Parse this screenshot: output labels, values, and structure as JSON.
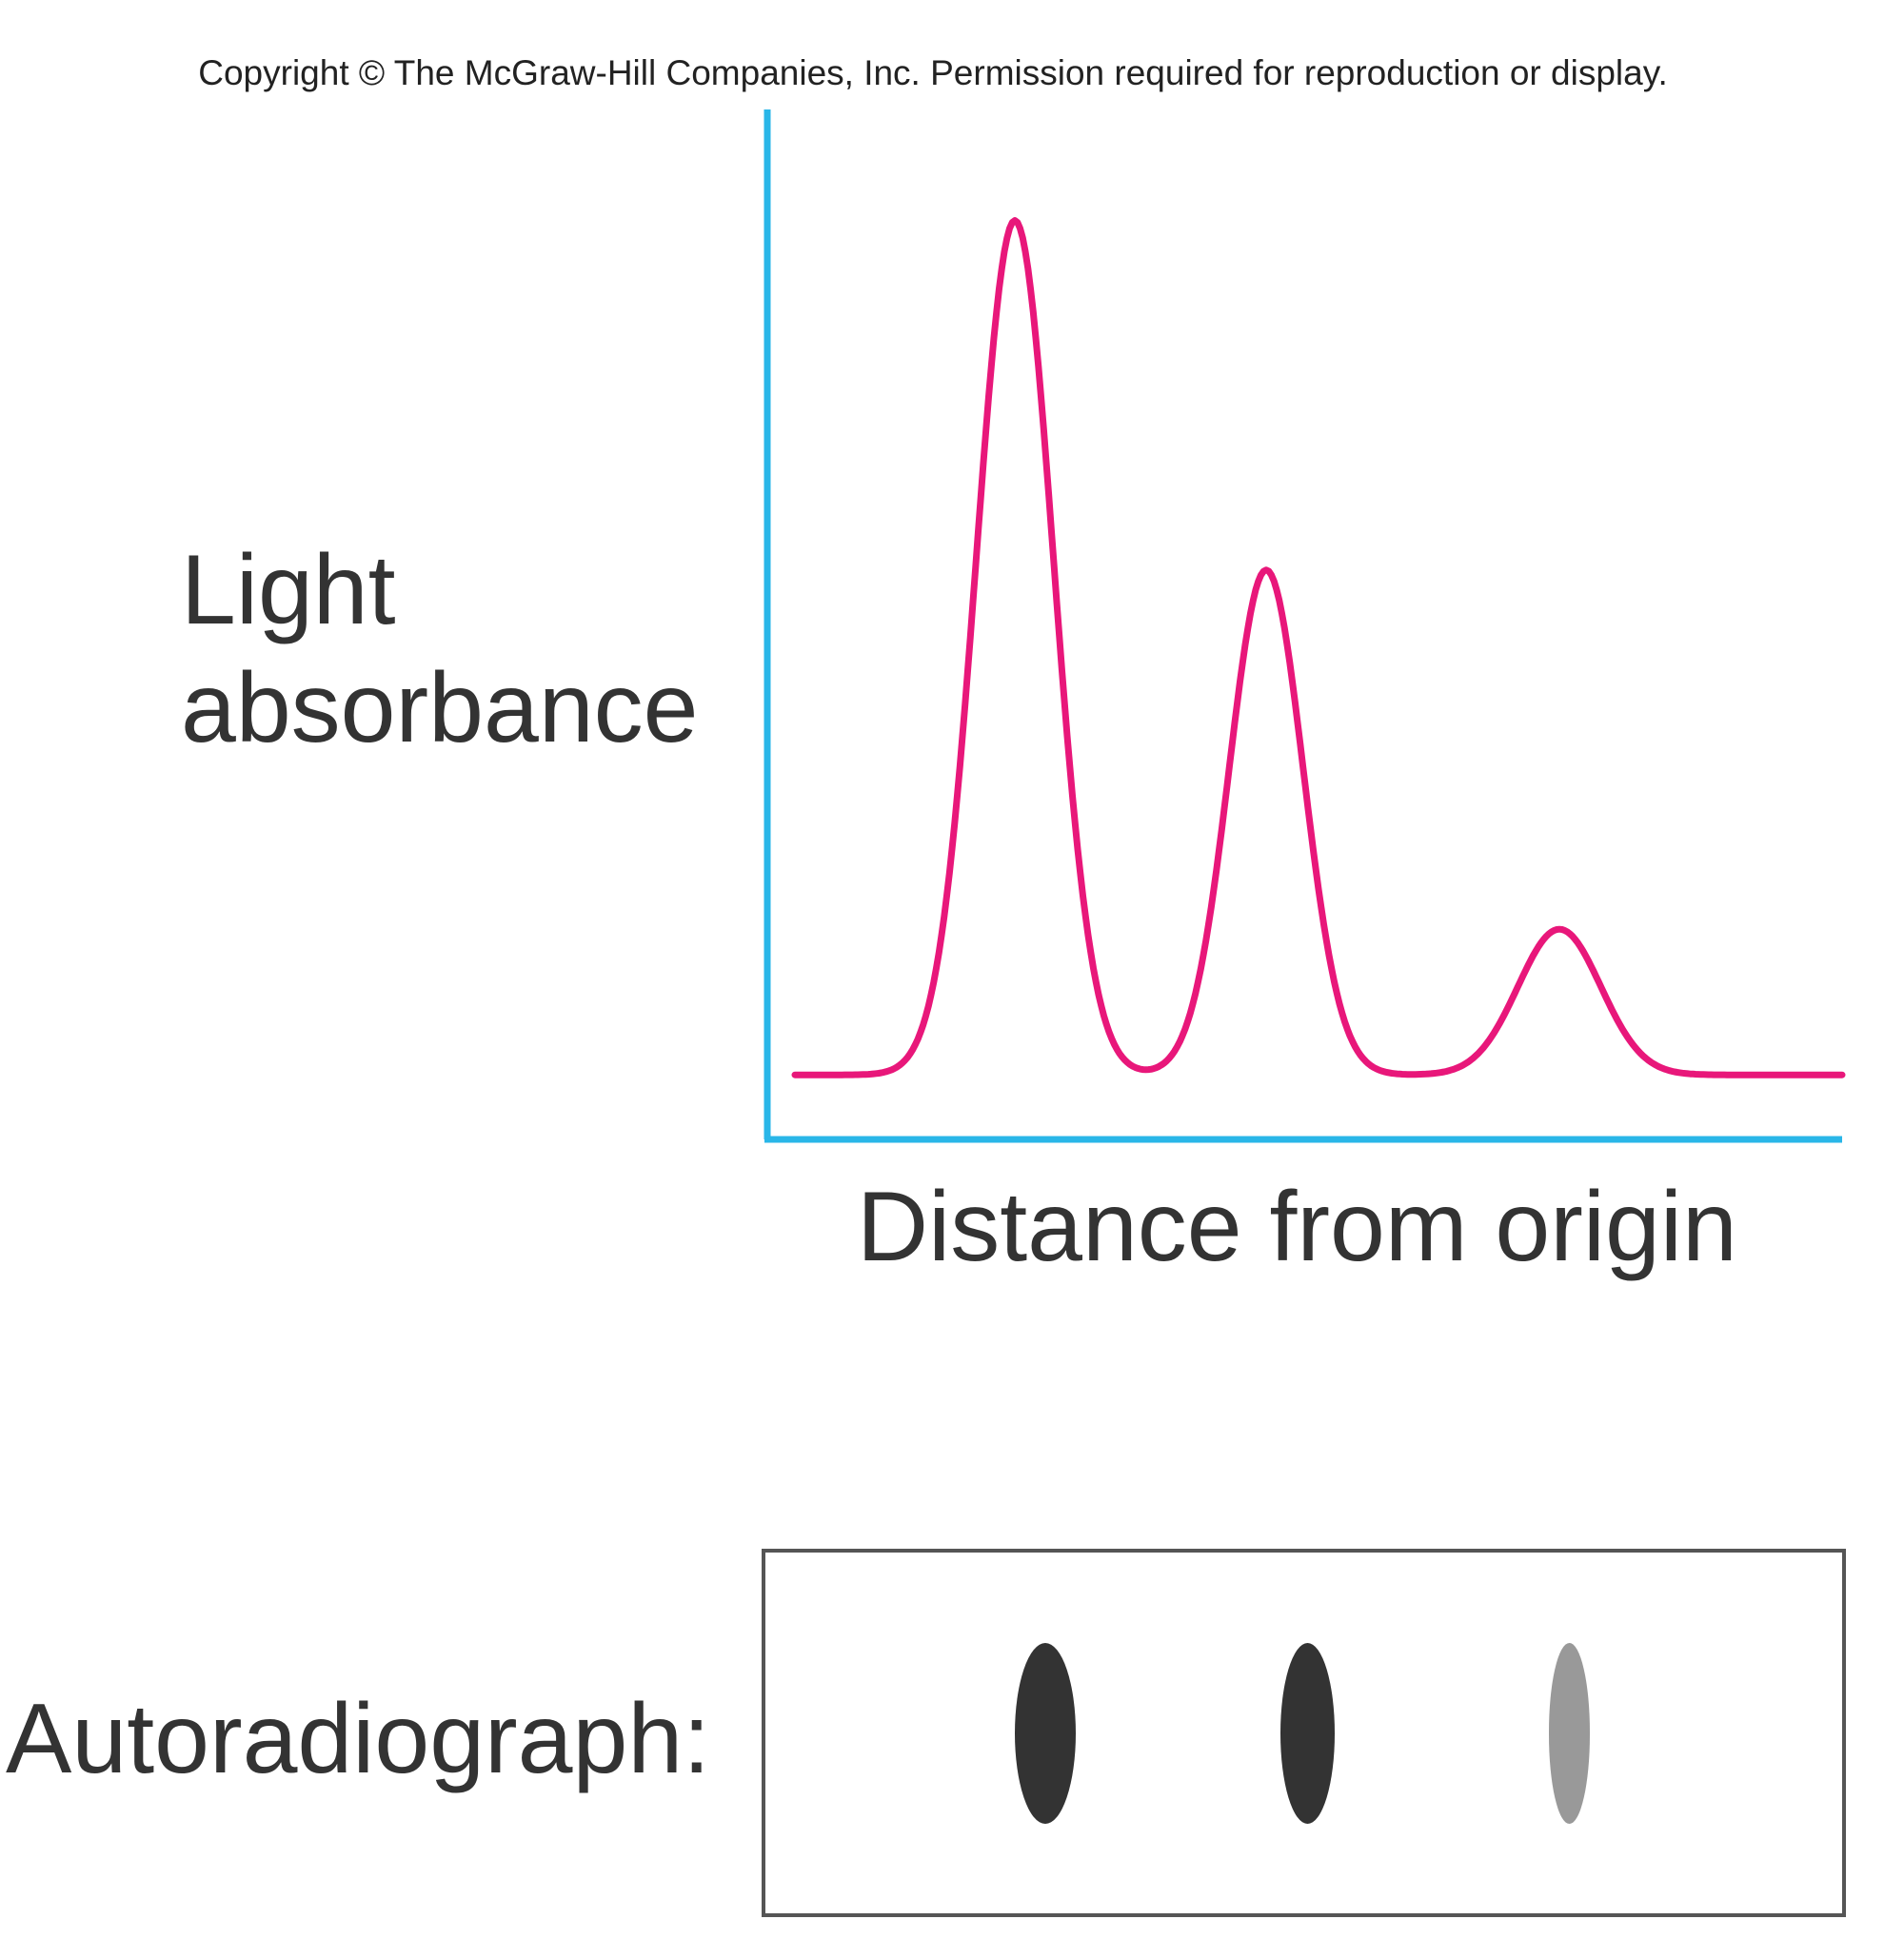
{
  "copyright": "Copyright © The McGraw-Hill Companies, Inc. Permission required for reproduction or display.",
  "chart_data": {
    "type": "line",
    "xlabel": "Distance from origin",
    "ylabel_lines": [
      "Light",
      "absorbance"
    ],
    "xlim": [
      0,
      100
    ],
    "ylim": [
      0,
      100
    ],
    "grid": false,
    "curve_color": "#e8177a",
    "axis_color": "#29b6e8",
    "peaks": [
      {
        "x": 21,
        "height": 92
      },
      {
        "x": 45,
        "height": 56
      },
      {
        "x": 73,
        "height": 19
      }
    ],
    "baseline": 4
  },
  "autoradiograph": {
    "label": "Autoradiograph:",
    "bands": [
      {
        "x": 21,
        "intensity": 1.0,
        "color": "#333333"
      },
      {
        "x": 48,
        "intensity": 0.8,
        "color": "#333333"
      },
      {
        "x": 75,
        "intensity": 0.4,
        "color": "#999999"
      }
    ]
  }
}
